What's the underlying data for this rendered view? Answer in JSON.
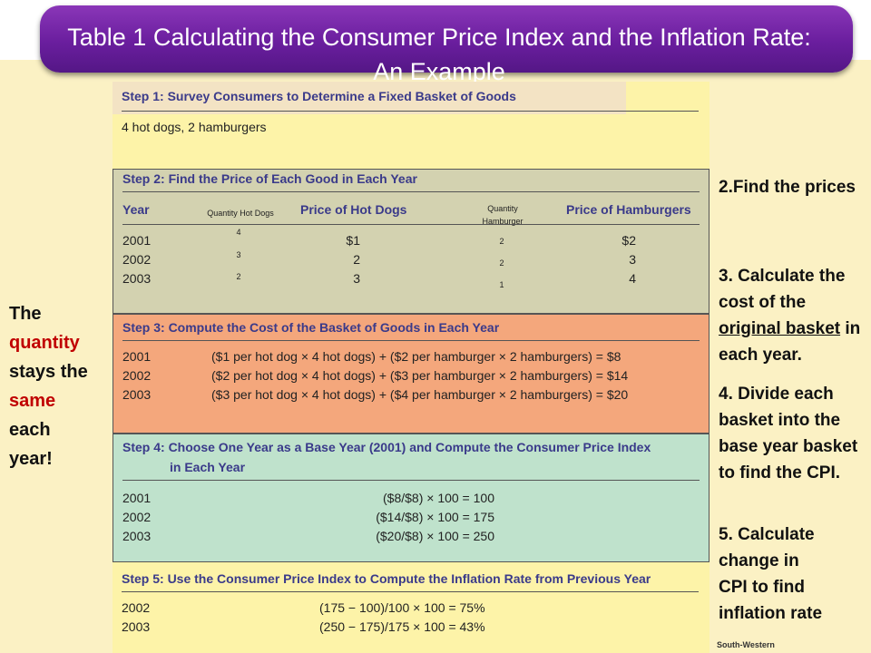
{
  "title": "Table 1 Calculating the Consumer Price Index and the Inflation Rate: An Example",
  "step1": {
    "heading": "Step 1: Survey Consumers to Determine a Fixed Basket of Goods",
    "basket": "4 hot dogs, 2 hamburgers"
  },
  "step2": {
    "heading": "Step 2: Find the Price of Each Good in Each Year",
    "col_year": "Year",
    "col_qty_hotdogs": "Quantity Hot Dogs",
    "col_price_hotdogs": "Price of Hot Dogs",
    "col_qty_hamburger": "Quantity Hamburger",
    "col_price_hamburgers": "Price of Hamburgers",
    "rows": [
      {
        "year": "2001",
        "qty_hotdogs": "4",
        "price_hotdogs": "$1",
        "qty_hamburger": "2",
        "price_hamburgers": "$2"
      },
      {
        "year": "2002",
        "qty_hotdogs": "3",
        "price_hotdogs": "2",
        "qty_hamburger": "2",
        "price_hamburgers": "3"
      },
      {
        "year": "2003",
        "qty_hotdogs": "2",
        "price_hotdogs": "3",
        "qty_hamburger": "1",
        "price_hamburgers": "4"
      }
    ]
  },
  "step3": {
    "heading": "Step 3: Compute the Cost of the Basket of Goods in Each Year",
    "rows": [
      {
        "year": "2001",
        "calc": "($1 per hot dog × 4 hot dogs) + ($2 per hamburger × 2 hamburgers) = $8"
      },
      {
        "year": "2002",
        "calc": "($2 per hot dog × 4 hot dogs) + ($3 per hamburger × 2 hamburgers) = $14"
      },
      {
        "year": "2003",
        "calc": "($3 per hot dog × 4 hot dogs) + ($4 per hamburger × 2 hamburgers) = $20"
      }
    ]
  },
  "step4": {
    "heading_line1": "Step 4: Choose One Year as a Base Year (2001) and Compute the Consumer Price Index",
    "heading_line2": "in Each Year",
    "rows": [
      {
        "year": "2001",
        "calc": "($8/$8) × 100 = 100"
      },
      {
        "year": "2002",
        "calc": "($14/$8) × 100 = 175"
      },
      {
        "year": "2003",
        "calc": "($20/$8) × 100 = 250"
      }
    ]
  },
  "step5": {
    "heading": "Step 5: Use the Consumer Price Index to Compute the Inflation Rate from Previous Year",
    "rows": [
      {
        "year": "2002",
        "calc": "(175 − 100)/100 × 100 = 75%"
      },
      {
        "year": "2003",
        "calc": "(250 − 175)/175 × 100 = 43%"
      }
    ]
  },
  "left_note": {
    "w1": "The",
    "w2": "quantity",
    "w3": "stays the",
    "w4": "same",
    "w5": "each",
    "w6": "year!"
  },
  "notes": {
    "n2": "2.Find the prices",
    "n3_pre": "3. Calculate the cost of the",
    "n3_u": "original basket",
    "n3_post": "in each year.",
    "n4": "4. Divide each basket into the base year basket to find the CPI.",
    "n5": "5. Calculate change in CPI to find inflation rate"
  },
  "credit": "South-Western",
  "colors": {
    "title_bar": "#6a1e9e",
    "background": "#fbf1c4",
    "step_heading": "#3a3a8a",
    "step2_bg": "#d3d2b0",
    "step3_bg": "#f4a77c",
    "step4_bg": "#bfe2cc",
    "highlight_red": "#c00000"
  }
}
